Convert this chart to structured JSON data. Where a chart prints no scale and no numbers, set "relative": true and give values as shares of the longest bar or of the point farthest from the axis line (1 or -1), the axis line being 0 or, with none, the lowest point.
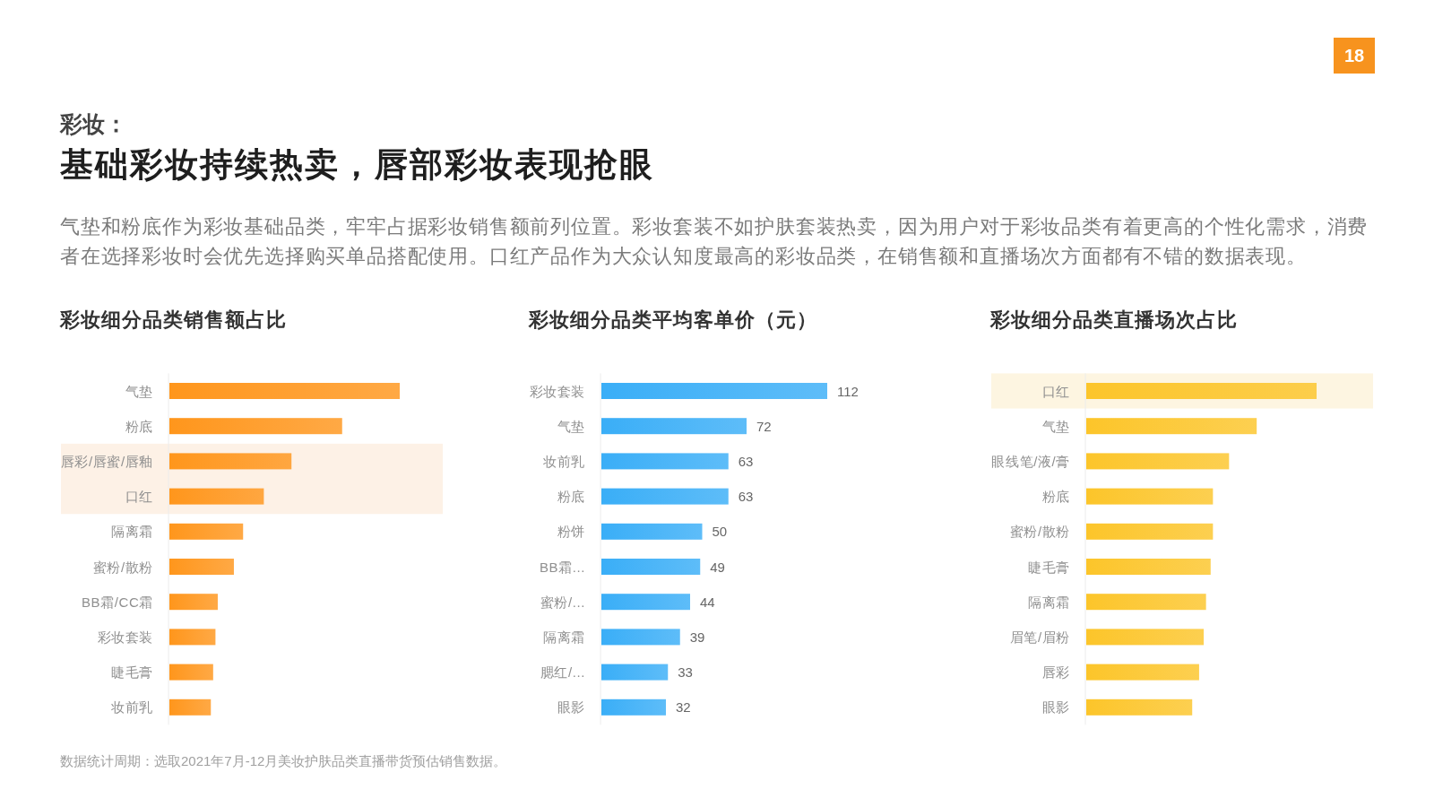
{
  "chart_data": [
    {
      "type": "other",
      "title": "基础彩妆持续热卖，唇部彩妆表现抢眼",
      "subtitle": "气垫和粉底作为彩妆基础品类，牢牢占据彩妆销售额前列位置。彩妆套装不如护肤套装热卖，因为用户对于彩妆品类有着更高的个性化需求，消费者在选择彩妆时会优先选择购买单品搭配使用。口红产品作为大众认知度最高的彩妆品类，在销售额和直播场次方面都有不错的数据表现。",
      "annotations": [
        "彩妆：",
        "数据统计周期：选取2021年7月-12月美妆护肤品类直播带货预估销售数据。",
        "18"
      ]
    },
    {
      "type": "bar",
      "orientation": "horizontal",
      "relative": true,
      "title": "彩妆细分品类销售额占比",
      "categories": [
        "气垫",
        "粉底",
        "唇彩/唇蜜/唇釉",
        "口红",
        "隔离霜",
        "蜜粉/散粉",
        "BB霜/CC霜",
        "彩妆套装",
        "睫毛膏",
        "妆前乳"
      ],
      "values": [
        1,
        0.75,
        0.53,
        0.41,
        0.32,
        0.28,
        0.21,
        0.2,
        0.19,
        0.18
      ],
      "color": "#ff961c",
      "tick_labels": "y",
      "bands": [
        {
          "axis": "y",
          "from": "唇彩/唇蜜/唇釉",
          "to": "口红",
          "color": "#fdf1e6"
        }
      ]
    },
    {
      "type": "bar",
      "orientation": "horizontal",
      "title": "彩妆细分品类平均客单价（元）",
      "categories": [
        "彩妆套装",
        "气垫",
        "妆前乳",
        "粉底",
        "粉饼",
        "BB霜...",
        "蜜粉/...",
        "隔离霜",
        "腮红/...",
        "眼影"
      ],
      "values": [
        112,
        72,
        63,
        63,
        50,
        49,
        44,
        39,
        33,
        32
      ],
      "color": "#3aaef7",
      "data_labels": true,
      "tick_labels": "y"
    },
    {
      "type": "bar",
      "orientation": "horizontal",
      "relative": true,
      "title": "彩妆细分品类直播场次占比",
      "categories": [
        "口红",
        "气垫",
        "眼线笔/液/膏",
        "粉底",
        "蜜粉/散粉",
        "睫毛膏",
        "隔离霜",
        "眉笔/眉粉",
        "唇彩",
        "眼影"
      ],
      "values": [
        1,
        0.74,
        0.62,
        0.55,
        0.55,
        0.54,
        0.52,
        0.51,
        0.49,
        0.46
      ],
      "color": "#fcc52a",
      "tick_labels": "y",
      "bands": [
        {
          "axis": "y",
          "from": "口红",
          "to": "口红",
          "color": "#fdf5e1"
        }
      ]
    }
  ]
}
